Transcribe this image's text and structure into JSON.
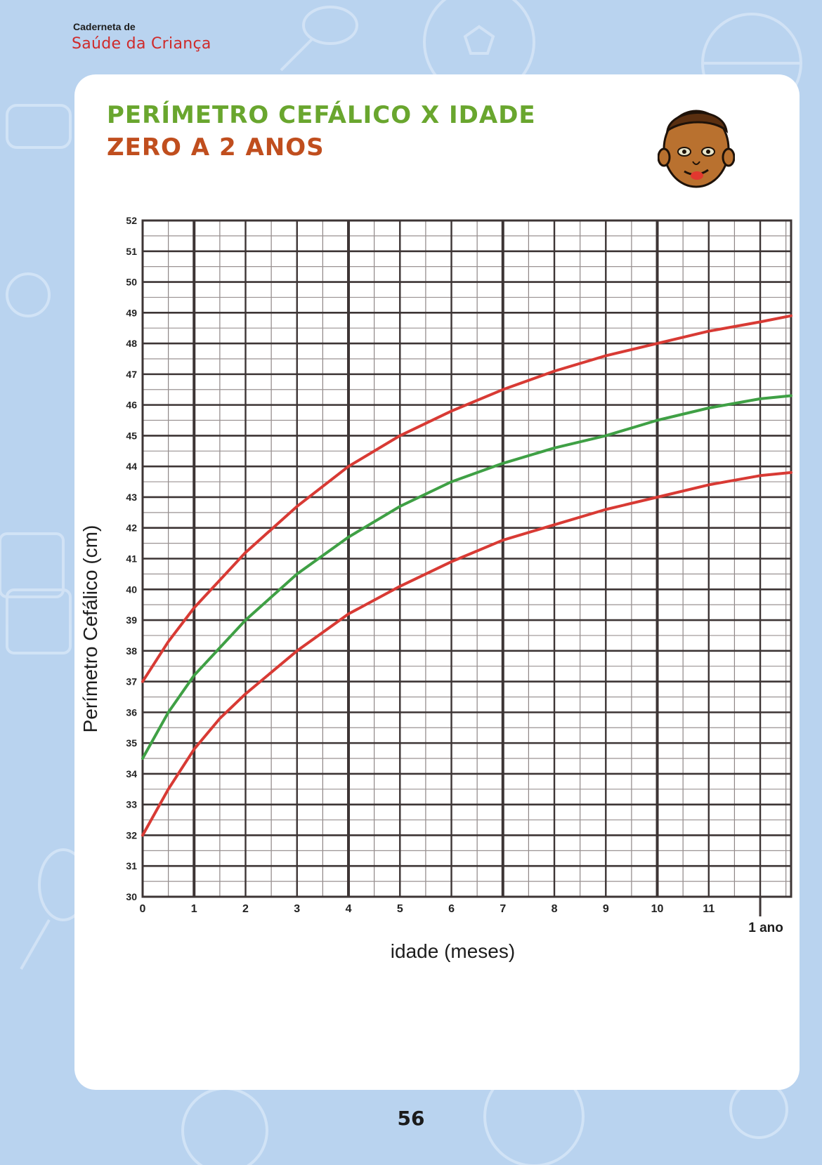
{
  "header": {
    "booklet_name": "Caderneta de",
    "booklet_subtitle": "Saúde da Criança"
  },
  "page": {
    "title_line1": "PERÍMETRO CEFÁLICO X IDADE",
    "title_line2": "ZERO A 2 ANOS",
    "page_number": "56"
  },
  "colors": {
    "background": "#b9d3ef",
    "panel": "#ffffff",
    "title_line1": "#69a62e",
    "title_line2": "#c04e1e",
    "grid": "#3d3535",
    "curve_upper": "#d83a34",
    "curve_median": "#3fa045",
    "curve_lower": "#d83a34"
  },
  "icons": [
    "baby-face-icon",
    "soccer-ball-icon",
    "rattle-icon",
    "basketball-icon",
    "abc-block-icon",
    "toy-car-icon"
  ],
  "chart_data": {
    "type": "line",
    "xlabel": "idade (meses)",
    "ylabel": "Perímetro Cefálico (cm)",
    "xlim": [
      0,
      12.6
    ],
    "ylim": [
      30,
      52
    ],
    "x_ticks": [
      "0",
      "1",
      "2",
      "3",
      "4",
      "5",
      "6",
      "7",
      "8",
      "9",
      "10",
      "11"
    ],
    "y_ticks": [
      "30",
      "31",
      "32",
      "33",
      "34",
      "35",
      "36",
      "37",
      "38",
      "39",
      "40",
      "41",
      "42",
      "43",
      "44",
      "45",
      "46",
      "47",
      "48",
      "49",
      "50",
      "51",
      "52"
    ],
    "year_marker": {
      "x": 12,
      "label": "1 ano"
    },
    "grid": true,
    "series": [
      {
        "color": "#d83a34",
        "points": [
          [
            0,
            37.0
          ],
          [
            0.5,
            38.3
          ],
          [
            1,
            39.4
          ],
          [
            1.5,
            40.3
          ],
          [
            2,
            41.2
          ],
          [
            3,
            42.7
          ],
          [
            4,
            44.0
          ],
          [
            5,
            45.0
          ],
          [
            6,
            45.8
          ],
          [
            7,
            46.5
          ],
          [
            8,
            47.1
          ],
          [
            9,
            47.6
          ],
          [
            10,
            48.0
          ],
          [
            11,
            48.4
          ],
          [
            12,
            48.7
          ],
          [
            12.6,
            48.9
          ]
        ]
      },
      {
        "color": "#3fa045",
        "points": [
          [
            0,
            34.5
          ],
          [
            0.5,
            36.0
          ],
          [
            1,
            37.2
          ],
          [
            1.5,
            38.1
          ],
          [
            2,
            39.0
          ],
          [
            3,
            40.5
          ],
          [
            4,
            41.7
          ],
          [
            5,
            42.7
          ],
          [
            6,
            43.5
          ],
          [
            7,
            44.1
          ],
          [
            8,
            44.6
          ],
          [
            9,
            45.0
          ],
          [
            10,
            45.5
          ],
          [
            11,
            45.9
          ],
          [
            12,
            46.2
          ],
          [
            12.6,
            46.3
          ]
        ]
      },
      {
        "color": "#d83a34",
        "points": [
          [
            0,
            32.0
          ],
          [
            0.5,
            33.5
          ],
          [
            1,
            34.8
          ],
          [
            1.5,
            35.8
          ],
          [
            2,
            36.6
          ],
          [
            3,
            38.0
          ],
          [
            4,
            39.2
          ],
          [
            5,
            40.1
          ],
          [
            6,
            40.9
          ],
          [
            7,
            41.6
          ],
          [
            8,
            42.1
          ],
          [
            9,
            42.6
          ],
          [
            10,
            43.0
          ],
          [
            11,
            43.4
          ],
          [
            12,
            43.7
          ],
          [
            12.6,
            43.8
          ]
        ]
      }
    ]
  }
}
